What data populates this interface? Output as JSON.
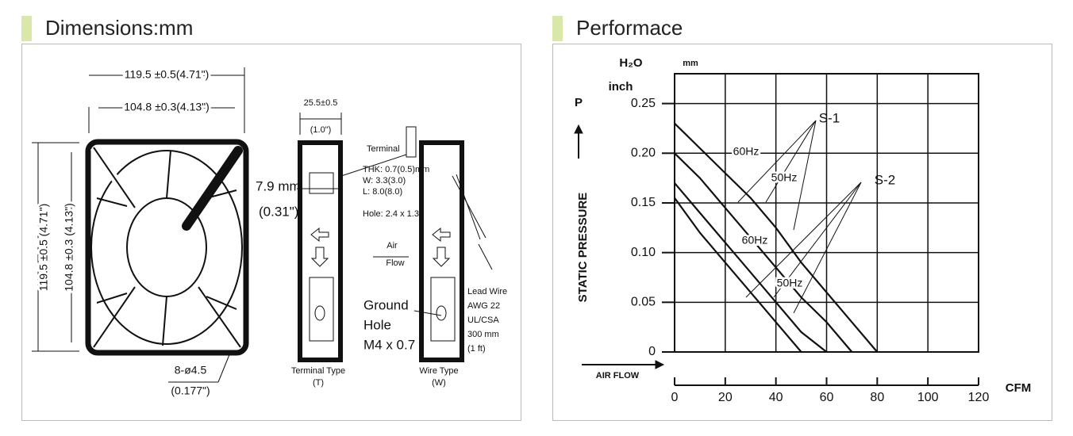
{
  "dimensions": {
    "title": "Dimensions:mm",
    "labels": {
      "width_outer": "119.5 ±0.5(4.71\")",
      "width_inner": "104.8 ±0.3(4.13\")",
      "height_outer": "119.5 ±0.5 (4.71\")",
      "height_inner": "104.8 ±0.3 (4.13\")",
      "holes": "8-ø4.5",
      "holes_inch": "(0.177\")",
      "depth": "25.5±0.5",
      "depth_inch": "(1.0\")",
      "offset": "7.9 mm",
      "offset_inch": "(0.31\")",
      "terminal": "Terminal",
      "thk": "THK: 0.7(0.5)mm",
      "w": "W: 3.3(3.0)",
      "l": "L: 8.0(8.0)",
      "hole": "Hole: 2.4 x 1.3",
      "air": "Air",
      "flow": "Flow",
      "ground": "Ground",
      "ground_hole": "Hole",
      "screw": "M4 x 0.7",
      "lead_wire": "Lead Wire",
      "awg": "AWG 22",
      "ul": "UL/CSA",
      "length": "300 mm",
      "length_ft": "(1 ft)",
      "terminal_type": "Terminal Type",
      "terminal_type_code": "(T)",
      "wire_type": "Wire Type",
      "wire_type_code": "(W)"
    }
  },
  "performance": {
    "title": "Performace",
    "chart": {
      "type": "line",
      "y_symbol": "P",
      "y_label": "STATIC PRESSURE",
      "y_unit_water": "H₂O",
      "y_unit_mm": "mm",
      "y_unit_inch": "inch",
      "x_label": "AIR FLOW",
      "x_unit": "CFM",
      "annotations": [
        "S-1",
        "S-2"
      ],
      "x": [
        0,
        10,
        20,
        30,
        40,
        50,
        60,
        70,
        80
      ],
      "series": [
        {
          "name": "60Hz",
          "color": "#111111",
          "values": [
            0.23,
            0.205,
            0.18,
            0.155,
            0.125,
            0.09,
            0.06,
            0.03,
            0
          ]
        },
        {
          "name": "50Hz",
          "color": "#111111",
          "values": [
            0.2,
            0.175,
            0.145,
            0.115,
            0.085,
            0.055,
            0.03,
            0,
            null
          ]
        },
        {
          "name": "60Hz",
          "color": "#111111",
          "values": [
            0.17,
            0.14,
            0.11,
            0.08,
            0.05,
            0.02,
            0,
            null,
            null
          ]
        },
        {
          "name": "50Hz",
          "color": "#111111",
          "values": [
            0.155,
            0.12,
            0.09,
            0.06,
            0.03,
            0,
            null,
            null,
            null
          ]
        }
      ],
      "xlim": [
        0,
        120
      ],
      "xticks": [
        0,
        20,
        40,
        60,
        80,
        100,
        120
      ],
      "ylim": [
        0,
        0.28
      ],
      "yticks": [
        0,
        0.05,
        {
          "value": 0.1,
          "label": "0.10"
        },
        0.15,
        {
          "value": 0.2,
          "label": "0.20"
        },
        0.25
      ],
      "grid": true
    }
  }
}
